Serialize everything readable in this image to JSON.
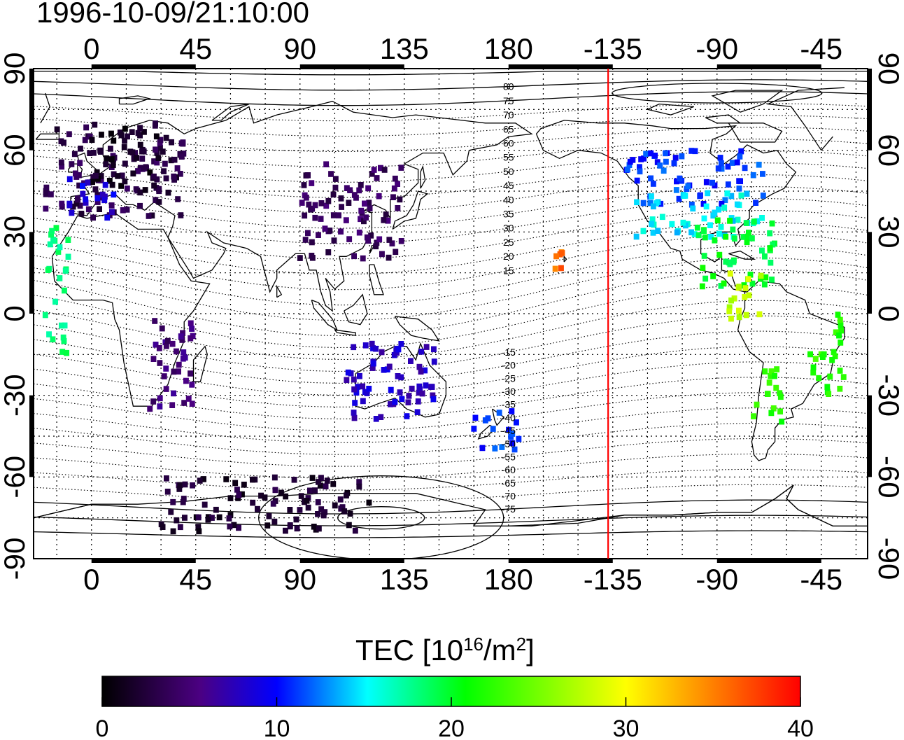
{
  "title": "1996-10-09/21:10:00",
  "map": {
    "top_lon_labels": [
      "0",
      "45",
      "90",
      "135",
      "180",
      "-135",
      "-90",
      "-45"
    ],
    "bottom_lon_labels": [
      "0",
      "45",
      "90",
      "135",
      "180",
      "-135",
      "-90",
      "-45"
    ],
    "left_lat_labels": [
      "90",
      "60",
      "30",
      "0",
      "-30",
      "-60",
      "-90"
    ],
    "right_lat_labels": [
      "90",
      "60",
      "30",
      "0",
      "-30",
      "-60",
      "-90"
    ],
    "contour_labels": [
      "80",
      "75",
      "70",
      "65",
      "60",
      "55",
      "50",
      "45",
      "40",
      "35",
      "30",
      "25",
      "20",
      "15",
      "-15",
      "-20",
      "-25",
      "-30",
      "-35",
      "-40",
      "-45",
      "-50",
      "-55",
      "-60",
      "-65",
      "-70",
      "-75"
    ],
    "terminator_color": "#ff0000"
  },
  "colorbar": {
    "title_main": "TEC  [10",
    "title_exp1": "16",
    "title_mid": "/m",
    "title_exp2": "2",
    "title_end": "]",
    "ticks": [
      "0",
      "10",
      "20",
      "30",
      "40"
    ],
    "colors": [
      "#000000",
      "#4b0082",
      "#0000ff",
      "#00ffff",
      "#00ff00",
      "#ffff00",
      "#ff0000"
    ]
  },
  "chart_data": {
    "type": "heatmap",
    "title": "1996-10-09/21:10:00",
    "xlabel": "",
    "ylabel": "",
    "xlim": [
      -25,
      335
    ],
    "ylim": [
      -90,
      90
    ],
    "x_ticks": [
      "0",
      "45",
      "90",
      "135",
      "180",
      "-135",
      "-90",
      "-45"
    ],
    "y_ticks": [
      "90",
      "60",
      "30",
      "0",
      "-30",
      "-60",
      "-90"
    ],
    "value_label": "TEC  [10^16/m^2]",
    "value_range": [
      0,
      40
    ],
    "grid": true,
    "regions": [
      {
        "lon": [
          -20,
          40
        ],
        "lat": [
          35,
          70
        ],
        "tec": 3
      },
      {
        "lon": [
          0,
          30
        ],
        "lat": [
          45,
          70
        ],
        "tec": 1.5
      },
      {
        "lon": [
          -10,
          10
        ],
        "lat": [
          35,
          50
        ],
        "tec": 9
      },
      {
        "lon": [
          -20,
          -10
        ],
        "lat": [
          -15,
          32
        ],
        "tec": 18
      },
      {
        "lon": [
          25,
          45
        ],
        "lat": [
          -35,
          0
        ],
        "tec": 5
      },
      {
        "lon": [
          90,
          135
        ],
        "lat": [
          20,
          55
        ],
        "tec": 4
      },
      {
        "lon": [
          110,
          150
        ],
        "lat": [
          -40,
          -10
        ],
        "tec": 8
      },
      {
        "lon": [
          165,
          185
        ],
        "lat": [
          -50,
          -35
        ],
        "tec": 11
      },
      {
        "lon": [
          -130,
          -70
        ],
        "lat": [
          40,
          60
        ],
        "tec": 11
      },
      {
        "lon": [
          -125,
          -70
        ],
        "lat": [
          28,
          45
        ],
        "tec": 15
      },
      {
        "lon": [
          -100,
          -65
        ],
        "lat": [
          10,
          35
        ],
        "tec": 20
      },
      {
        "lon": [
          -85,
          -70
        ],
        "lat": [
          -5,
          15
        ],
        "tec": 28
      },
      {
        "lon": [
          -75,
          -60
        ],
        "lat": [
          -40,
          -20
        ],
        "tec": 22
      },
      {
        "lon": [
          -50,
          -35
        ],
        "lat": [
          -30,
          0
        ],
        "tec": 22
      },
      {
        "lon": [
          -160,
          -155
        ],
        "lat": [
          15,
          23
        ],
        "tec": 36
      },
      {
        "lon": [
          30,
          120
        ],
        "lat": [
          -80,
          -60
        ],
        "tec": 2
      }
    ],
    "terminator_lon": -137
  }
}
